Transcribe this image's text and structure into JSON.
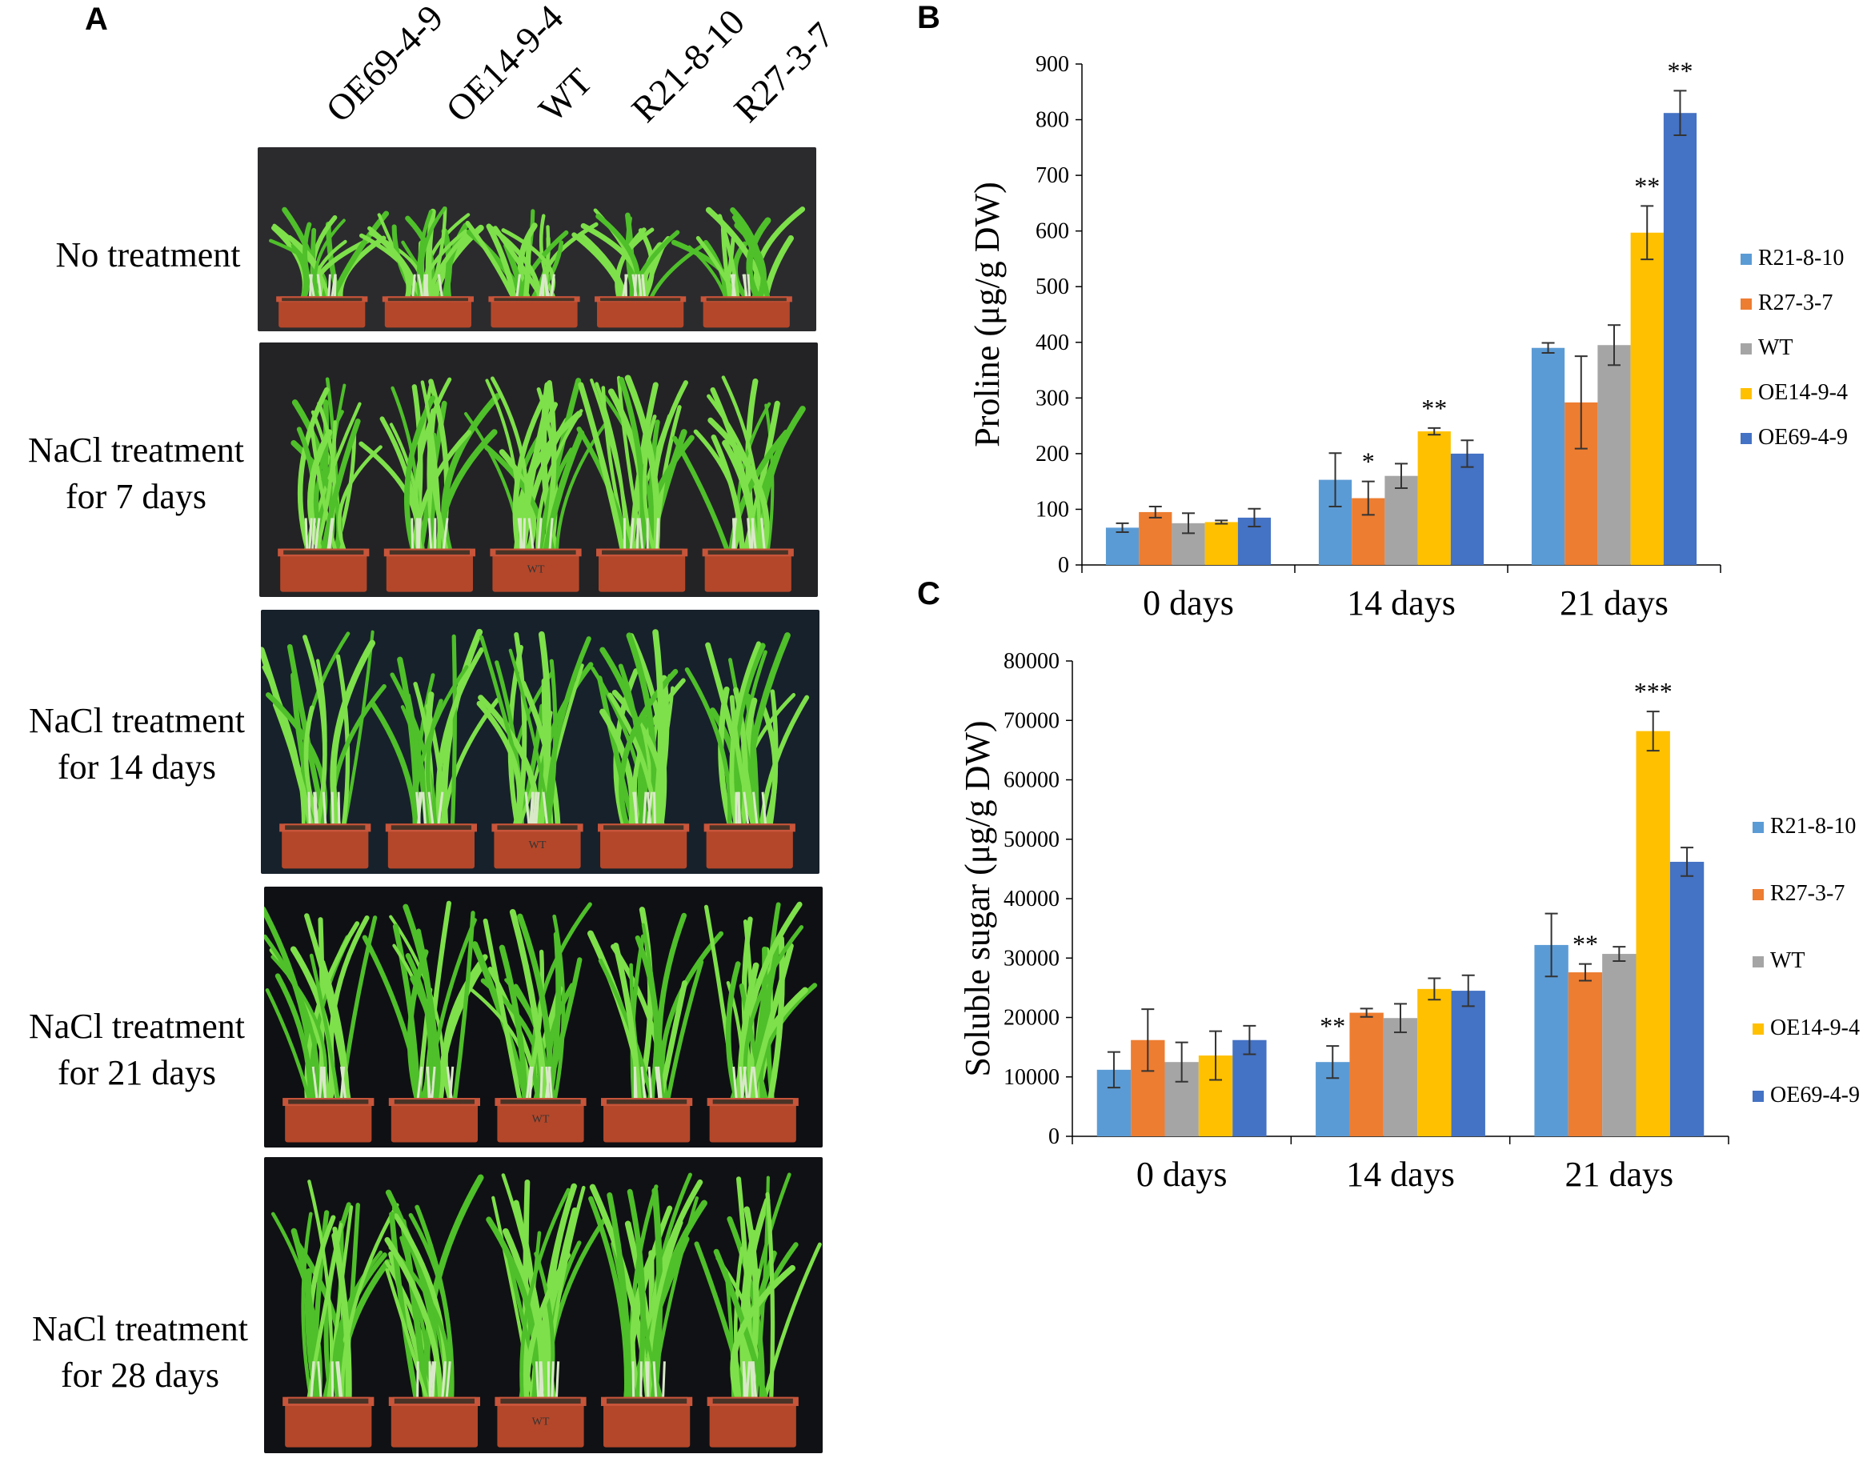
{
  "panel_a": {
    "letter": "A",
    "genotypes": [
      "OE69-4-9",
      "OE14-9-4",
      "WT",
      "R21-8-10",
      "R27-3-7"
    ],
    "rows": [
      {
        "line1": "No treatment",
        "line2": "",
        "background": "#2b2b2e",
        "pot_labels": [
          "",
          "",
          "",
          "",
          ""
        ]
      },
      {
        "line1": "NaCl treatment",
        "line2": "for 7 days",
        "background": "#232325",
        "pot_labels": [
          "",
          "",
          "WT",
          "",
          ""
        ]
      },
      {
        "line1": "NaCl  treatment",
        "line2": "for 14 days",
        "background": "#17212b",
        "pot_labels": [
          "",
          "",
          "WT",
          "",
          ""
        ]
      },
      {
        "line1": "NaCl  treatment",
        "line2": "for 21 days",
        "background": "#0f1014",
        "pot_labels": [
          "",
          "",
          "WT",
          "",
          ""
        ]
      },
      {
        "line1": "NaCl  treatment",
        "line2": "for 28 days",
        "background": "#101114",
        "pot_labels": [
          "",
          "",
          "WT",
          "",
          ""
        ]
      }
    ],
    "colors": {
      "pot": "#b4472a",
      "pot_rim": "#c8553a",
      "soil": "#4a3326",
      "leaf": "#4fbf2a",
      "leaf_light": "#7ee04a",
      "stem": "#d9e8c8"
    }
  },
  "chart_data": [
    {
      "letter": "B",
      "type": "bar",
      "categories": [
        "0 days",
        "14 days",
        "21 days"
      ],
      "series": [
        {
          "name": "R21-8-10",
          "color": "#5b9bd5",
          "values": [
            67,
            153,
            390
          ],
          "errors": [
            8,
            48,
            9
          ],
          "sig": [
            "",
            "",
            ""
          ]
        },
        {
          "name": "R27-3-7",
          "color": "#ed7d31",
          "values": [
            95,
            120,
            292
          ],
          "errors": [
            10,
            30,
            83
          ],
          "sig": [
            "",
            "*",
            ""
          ]
        },
        {
          "name": "WT",
          "color": "#a5a5a5",
          "values": [
            75,
            160,
            395
          ],
          "errors": [
            18,
            22,
            36
          ],
          "sig": [
            "",
            "",
            ""
          ]
        },
        {
          "name": "OE14-9-4",
          "color": "#ffc000",
          "values": [
            77,
            240,
            597
          ],
          "errors": [
            3,
            6,
            48
          ],
          "sig": [
            "",
            "**",
            "**"
          ]
        },
        {
          "name": "OE69-4-9",
          "color": "#4472c4",
          "values": [
            85,
            200,
            812
          ],
          "errors": [
            16,
            24,
            40
          ],
          "sig": [
            "",
            "",
            "**"
          ]
        }
      ],
      "ylabel": "Proline  (μg/g DW)",
      "ylim": [
        0,
        900
      ],
      "yticks": [
        0,
        100,
        200,
        300,
        400,
        500,
        600,
        700,
        800,
        900
      ],
      "legend": "right"
    },
    {
      "letter": "C",
      "type": "bar",
      "categories": [
        "0 days",
        "14 days",
        "21 days"
      ],
      "series": [
        {
          "name": "R21-8-10",
          "color": "#5b9bd5",
          "values": [
            11200,
            12500,
            32200
          ],
          "errors": [
            3000,
            2700,
            5300
          ],
          "sig": [
            "",
            "**",
            ""
          ]
        },
        {
          "name": "R27-3-7",
          "color": "#ed7d31",
          "values": [
            16200,
            20800,
            27600
          ],
          "errors": [
            5200,
            700,
            1400
          ],
          "sig": [
            "",
            "",
            "**"
          ]
        },
        {
          "name": "WT",
          "color": "#a5a5a5",
          "values": [
            12500,
            19900,
            30700
          ],
          "errors": [
            3300,
            2400,
            1200
          ],
          "sig": [
            "",
            "",
            ""
          ]
        },
        {
          "name": "OE14-9-4",
          "color": "#ffc000",
          "values": [
            13600,
            24800,
            68200
          ],
          "errors": [
            4100,
            1800,
            3300
          ],
          "sig": [
            "",
            "",
            "***"
          ]
        },
        {
          "name": "OE69-4-9",
          "color": "#4472c4",
          "values": [
            16200,
            24500,
            46200
          ],
          "errors": [
            2400,
            2600,
            2400
          ],
          "sig": [
            "",
            "",
            ""
          ]
        }
      ],
      "ylabel": "Soluble sugar  (μg/g DW)",
      "ylim": [
        0,
        80000
      ],
      "yticks": [
        0,
        10000,
        20000,
        30000,
        40000,
        50000,
        60000,
        70000,
        80000
      ],
      "legend": "right"
    }
  ]
}
